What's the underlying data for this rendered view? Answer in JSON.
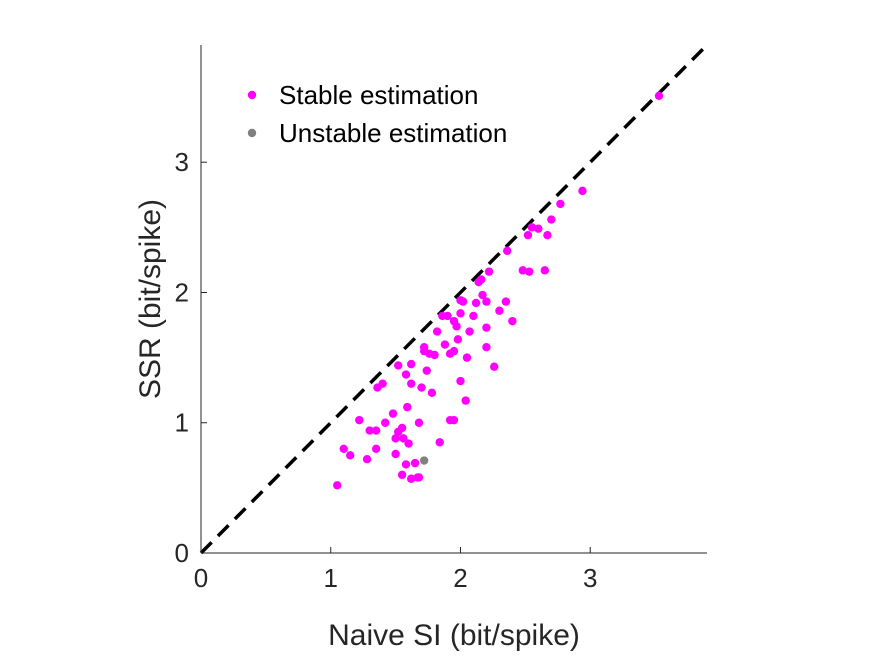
{
  "chart_data": {
    "type": "scatter",
    "xlabel": "Naive SI (bit/spike)",
    "ylabel": "SSR (bit/spike)",
    "xlim": [
      0,
      3.9
    ],
    "ylim": [
      0,
      3.9
    ],
    "x_ticks": [
      "0",
      "1",
      "2",
      "3"
    ],
    "y_ticks": [
      "0",
      "1",
      "2",
      "3"
    ],
    "x_tick_values": [
      0,
      1,
      2,
      3
    ],
    "y_tick_values": [
      0,
      1,
      2,
      3
    ],
    "legend_position": "top-left",
    "reference_line": "identity (y = x), black dashed",
    "series": [
      {
        "name": "Stable estimation",
        "color": "#ff00ff",
        "points": [
          [
            1.05,
            0.52
          ],
          [
            1.1,
            0.8
          ],
          [
            1.15,
            0.75
          ],
          [
            1.22,
            1.02
          ],
          [
            1.28,
            0.72
          ],
          [
            1.3,
            0.94
          ],
          [
            1.35,
            0.94
          ],
          [
            1.35,
            0.8
          ],
          [
            1.36,
            1.27
          ],
          [
            1.4,
            1.3
          ],
          [
            1.42,
            1.0
          ],
          [
            1.48,
            1.07
          ],
          [
            1.5,
            0.76
          ],
          [
            1.5,
            0.88
          ],
          [
            1.52,
            1.44
          ],
          [
            1.52,
            0.93
          ],
          [
            1.55,
            0.6
          ],
          [
            1.55,
            0.96
          ],
          [
            1.56,
            0.88
          ],
          [
            1.58,
            0.68
          ],
          [
            1.58,
            1.37
          ],
          [
            1.59,
            1.12
          ],
          [
            1.6,
            0.84
          ],
          [
            1.62,
            0.57
          ],
          [
            1.62,
            1.3
          ],
          [
            1.62,
            1.45
          ],
          [
            1.65,
            0.69
          ],
          [
            1.67,
            0.58
          ],
          [
            1.68,
            0.58
          ],
          [
            1.68,
            1.0
          ],
          [
            1.7,
            1.27
          ],
          [
            1.72,
            1.55
          ],
          [
            1.72,
            1.58
          ],
          [
            1.74,
            1.4
          ],
          [
            1.76,
            1.53
          ],
          [
            1.78,
            1.23
          ],
          [
            1.8,
            1.52
          ],
          [
            1.82,
            1.7
          ],
          [
            1.84,
            0.85
          ],
          [
            1.86,
            1.82
          ],
          [
            1.88,
            1.6
          ],
          [
            1.9,
            1.82
          ],
          [
            1.92,
            1.02
          ],
          [
            1.92,
            1.53
          ],
          [
            1.95,
            1.55
          ],
          [
            1.95,
            1.02
          ],
          [
            1.95,
            1.78
          ],
          [
            1.97,
            1.74
          ],
          [
            1.98,
            1.64
          ],
          [
            2.0,
            1.32
          ],
          [
            2.0,
            1.84
          ],
          [
            2.0,
            1.94
          ],
          [
            2.02,
            1.93
          ],
          [
            2.04,
            1.17
          ],
          [
            2.05,
            1.5
          ],
          [
            2.07,
            1.7
          ],
          [
            2.1,
            1.82
          ],
          [
            2.12,
            1.92
          ],
          [
            2.14,
            2.08
          ],
          [
            2.16,
            2.1
          ],
          [
            2.17,
            1.98
          ],
          [
            2.2,
            1.93
          ],
          [
            2.2,
            1.58
          ],
          [
            2.2,
            1.73
          ],
          [
            2.22,
            2.16
          ],
          [
            2.26,
            1.43
          ],
          [
            2.3,
            1.86
          ],
          [
            2.35,
            1.93
          ],
          [
            2.36,
            2.32
          ],
          [
            2.4,
            1.78
          ],
          [
            2.48,
            2.17
          ],
          [
            2.52,
            2.44
          ],
          [
            2.53,
            2.16
          ],
          [
            2.55,
            2.5
          ],
          [
            2.6,
            2.49
          ],
          [
            2.65,
            2.17
          ],
          [
            2.67,
            2.44
          ],
          [
            2.7,
            2.56
          ],
          [
            2.77,
            2.68
          ],
          [
            2.94,
            2.78
          ],
          [
            3.53,
            3.51
          ]
        ]
      },
      {
        "name": "Unstable estimation",
        "color": "#808080",
        "points": [
          [
            1.72,
            0.71
          ]
        ]
      }
    ]
  }
}
